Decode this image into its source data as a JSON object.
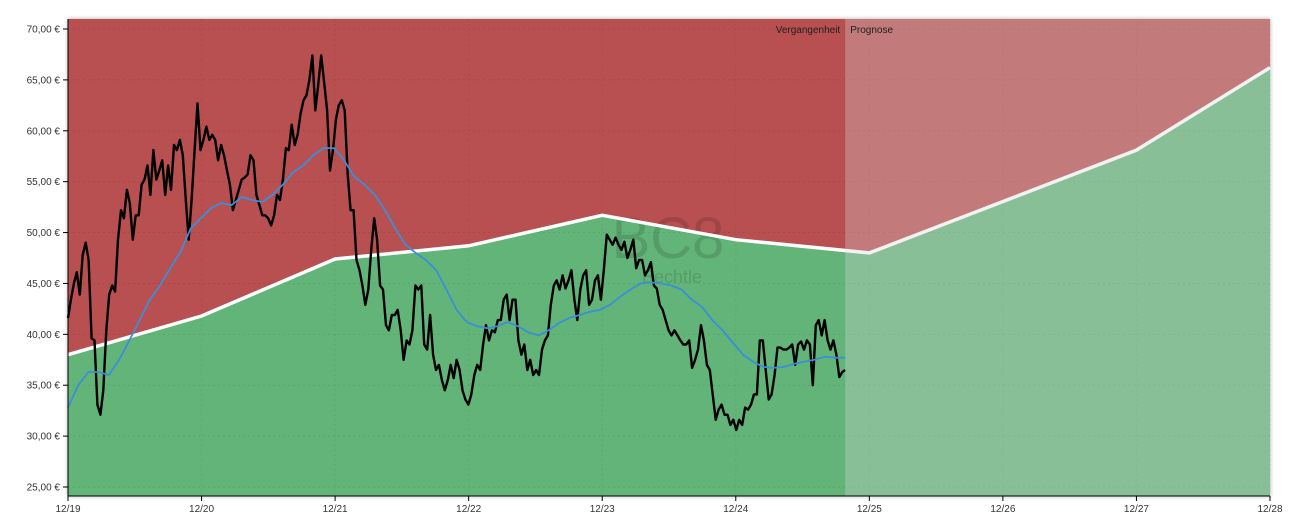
{
  "chart_data": {
    "type": "line",
    "title": "",
    "watermark": {
      "symbol": "BC8",
      "name": "Bechtle"
    },
    "x_ticks": [
      "12/19",
      "12/20",
      "12/21",
      "12/22",
      "12/23",
      "12/24",
      "12/25",
      "12/26",
      "12/27",
      "12/28"
    ],
    "y_ticks": [
      "25,00 €",
      "30,00 €",
      "35,00 €",
      "40,00 €",
      "45,00 €",
      "50,00 €",
      "55,00 €",
      "60,00 €",
      "65,00 €",
      "70,00 €"
    ],
    "ylim": [
      25,
      70
    ],
    "xlim": [
      "12/19",
      "12/28"
    ],
    "grid": true,
    "section_labels": {
      "past": "Vergangenheit",
      "forecast": "Prognose"
    },
    "past_end": "12/24 19:40",
    "colors": {
      "upper_zone": "#b84f50",
      "lower_zone": "#63b478",
      "forecast_overlay": "#d8d8d8",
      "price": "#000000",
      "moving_average": "#3a8fd8",
      "threshold": "#ffffff"
    },
    "threshold": {
      "dates": [
        "12/19",
        "12/20",
        "12/21",
        "12/22",
        "12/23",
        "12/24",
        "12/25",
        "12/27",
        "12/28"
      ],
      "values": [
        38.0,
        41.8,
        47.4,
        48.7,
        51.7,
        49.3,
        48.0,
        58.1,
        66.2
      ]
    },
    "series": [
      {
        "role": "price",
        "values": [
          41.6,
          43.4,
          45.0,
          46.1,
          43.9,
          47.8,
          49.0,
          47.3,
          39.6,
          39.4,
          33.1,
          32.1,
          34.5,
          40.4,
          43.9,
          44.8,
          44.2,
          49.3,
          52.2,
          51.4,
          54.2,
          52.9,
          49.3,
          51.7,
          51.7,
          54.7,
          55.2,
          56.6,
          53.7,
          58.1,
          55.2,
          56.1,
          57.1,
          53.7,
          56.6,
          54.2,
          58.6,
          58.1,
          59.1,
          57.6,
          53.2,
          49.3,
          53.2,
          58.1,
          62.7,
          58.1,
          59.1,
          60.4,
          59.1,
          59.6,
          59.1,
          57.1,
          58.6,
          57.6,
          56.1,
          54.7,
          52.2,
          53.2,
          54.2,
          55.2,
          55.4,
          55.7,
          57.6,
          57.1,
          53.7,
          52.7,
          51.7,
          51.7,
          51.4,
          50.7,
          51.7,
          53.7,
          53.2,
          55.2,
          58.3,
          58.1,
          60.6,
          58.6,
          59.6,
          61.7,
          63.0,
          63.5,
          65.0,
          67.4,
          62.0,
          64.5,
          67.4,
          64.8,
          62.0,
          56.1,
          58.1,
          61.1,
          62.5,
          63.0,
          62.0,
          55.7,
          52.2,
          52.2,
          47.3,
          46.3,
          44.8,
          42.9,
          44.4,
          48.3,
          51.4,
          49.3,
          44.8,
          44.4,
          40.9,
          40.4,
          41.9,
          41.9,
          42.4,
          40.4,
          37.5,
          39.4,
          39.0,
          40.4,
          44.8,
          44.4,
          44.8,
          39.0,
          38.5,
          41.9,
          38.0,
          36.5,
          37.0,
          35.5,
          34.5,
          35.5,
          37.0,
          35.7,
          37.5,
          36.5,
          34.5,
          33.6,
          33.1,
          34.1,
          36.0,
          37.0,
          36.5,
          39.0,
          40.9,
          39.4,
          40.4,
          40.2,
          41.4,
          41.4,
          43.4,
          43.9,
          41.4,
          43.4,
          43.4,
          39.4,
          38.0,
          39.0,
          36.5,
          37.5,
          36.0,
          36.5,
          36.0,
          38.5,
          39.4,
          39.9,
          42.9,
          44.8,
          45.3,
          44.4,
          45.8,
          44.5,
          45.3,
          46.3,
          43.4,
          41.4,
          44.4,
          45.8,
          46.3,
          42.9,
          43.4,
          45.3,
          45.8,
          43.4,
          46.3,
          49.8,
          49.3,
          48.8,
          49.5,
          48.8,
          48.3,
          49.1,
          47.5,
          48.3,
          49.3,
          46.5,
          47.3,
          47.3,
          45.8,
          46.3,
          47.1,
          44.8,
          44.5,
          42.9,
          42.4,
          41.4,
          40.4,
          39.9,
          40.4,
          39.9,
          39.4,
          39.0,
          39.0,
          39.4,
          36.7,
          37.5,
          38.5,
          40.9,
          39.4,
          37.0,
          36.5,
          34.1,
          31.6,
          32.6,
          33.1,
          32.1,
          32.1,
          31.1,
          31.6,
          30.6,
          31.6,
          31.1,
          32.8,
          32.6,
          33.1,
          34.1,
          34.1,
          39.4,
          39.4,
          36.5,
          33.6,
          34.1,
          36.0,
          38.7,
          38.7,
          38.5,
          38.5,
          38.7,
          39.0,
          37.0,
          39.0,
          39.3,
          38.5,
          39.4,
          39.0,
          35.0,
          40.9,
          41.4,
          39.9,
          41.4,
          39.4,
          38.5,
          39.4,
          38.0,
          35.8,
          36.3,
          36.5
        ]
      },
      {
        "role": "moving_average",
        "values": [
          32.8,
          35.0,
          36.3,
          36.3,
          36.0,
          37.5,
          39.4,
          41.4,
          43.4,
          44.8,
          46.5,
          48.1,
          50.4,
          51.4,
          52.4,
          52.9,
          52.7,
          53.5,
          53.2,
          53.0,
          53.7,
          54.7,
          55.9,
          56.6,
          57.6,
          58.3,
          58.3,
          57.1,
          55.5,
          54.7,
          53.7,
          52.2,
          50.4,
          48.8,
          48.0,
          47.3,
          46.3,
          44.4,
          42.4,
          41.2,
          40.8,
          40.6,
          40.8,
          41.2,
          40.8,
          40.2,
          39.9,
          40.4,
          41.1,
          41.6,
          41.9,
          42.2,
          42.4,
          42.9,
          43.7,
          44.4,
          45.0,
          45.1,
          45.0,
          44.8,
          44.4,
          43.4,
          42.7,
          41.4,
          40.4,
          39.2,
          38.0,
          37.3,
          36.8,
          36.7,
          36.8,
          37.1,
          37.3,
          37.5,
          37.8,
          37.7,
          37.7
        ]
      }
    ]
  }
}
